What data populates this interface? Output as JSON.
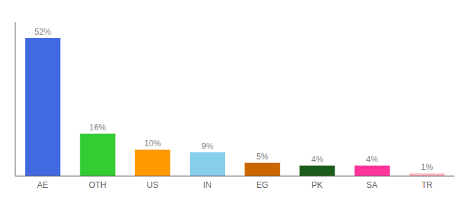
{
  "chart_data": {
    "type": "bar",
    "categories": [
      "AE",
      "OTH",
      "US",
      "IN",
      "EG",
      "PK",
      "SA",
      "TR"
    ],
    "values": [
      52,
      16,
      10,
      9,
      5,
      4,
      4,
      1
    ],
    "value_labels": [
      "52%",
      "16%",
      "10%",
      "9%",
      "5%",
      "4%",
      "4%",
      "1%"
    ],
    "data_labels": true,
    "colors": [
      "#4169e1",
      "#33cc33",
      "#ff9900",
      "#87ceeb",
      "#cc6600",
      "#1a5c1a",
      "#ff3399",
      "#ffb6c1"
    ],
    "ylim": [
      0,
      58
    ],
    "grid": false,
    "tick_labels": "x"
  }
}
